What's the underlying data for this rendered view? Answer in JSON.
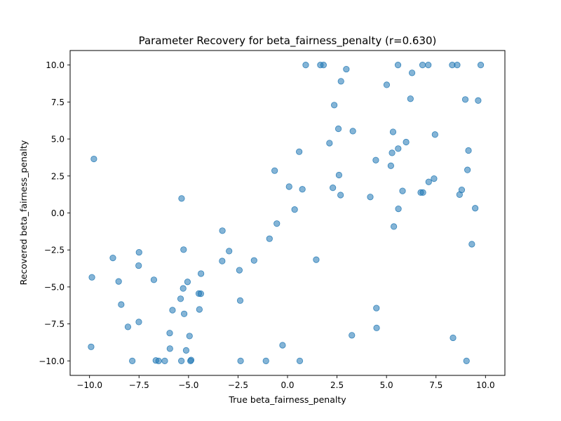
{
  "chart_data": {
    "type": "scatter",
    "title": "Parameter Recovery for beta_fairness_penalty (r=0.630)",
    "xlabel": "True beta_fairness_penalty",
    "ylabel": "Recovered beta_fairness_penalty",
    "xlim": [
      -10.98,
      10.98
    ],
    "ylim": [
      -10.98,
      10.98
    ],
    "xticks": [
      -10.0,
      -7.5,
      -5.0,
      -2.5,
      0.0,
      2.5,
      5.0,
      7.5,
      10.0
    ],
    "xtick_labels": [
      "−10.0",
      "−7.5",
      "−5.0",
      "−2.5",
      "0.0",
      "2.5",
      "5.0",
      "7.5",
      "10.0"
    ],
    "yticks": [
      -10.0,
      -7.5,
      -5.0,
      -2.5,
      0.0,
      2.5,
      5.0,
      7.5,
      10.0
    ],
    "ytick_labels": [
      "−10.0",
      "−7.5",
      "−5.0",
      "−2.5",
      "0.0",
      "2.5",
      "5.0",
      "7.5",
      "10.0"
    ],
    "grid": false,
    "marker_color": "#1f77b4",
    "marker_alpha": 0.55,
    "points": [
      [
        0.92,
        10.0
      ],
      [
        1.66,
        10.0
      ],
      [
        1.82,
        10.0
      ],
      [
        2.97,
        9.72
      ],
      [
        5.58,
        10.0
      ],
      [
        6.82,
        10.0
      ],
      [
        7.11,
        10.0
      ],
      [
        8.32,
        10.0
      ],
      [
        8.57,
        10.0
      ],
      [
        9.76,
        10.0
      ],
      [
        2.7,
        8.9
      ],
      [
        6.29,
        9.47
      ],
      [
        5.01,
        8.66
      ],
      [
        2.36,
        7.29
      ],
      [
        6.21,
        7.72
      ],
      [
        8.98,
        7.67
      ],
      [
        9.63,
        7.6
      ],
      [
        2.57,
        5.69
      ],
      [
        3.3,
        5.53
      ],
      [
        5.33,
        5.48
      ],
      [
        7.45,
        5.3
      ],
      [
        2.12,
        4.72
      ],
      [
        5.99,
        4.79
      ],
      [
        5.59,
        4.35
      ],
      [
        0.59,
        4.14
      ],
      [
        5.28,
        4.06
      ],
      [
        9.14,
        4.22
      ],
      [
        -9.78,
        3.65
      ],
      [
        4.46,
        3.57
      ],
      [
        5.22,
        3.19
      ],
      [
        -0.65,
        2.86
      ],
      [
        9.09,
        2.91
      ],
      [
        2.6,
        2.56
      ],
      [
        7.4,
        2.32
      ],
      [
        7.13,
        2.1
      ],
      [
        0.08,
        1.78
      ],
      [
        0.75,
        1.6
      ],
      [
        2.29,
        1.7
      ],
      [
        5.81,
        1.49
      ],
      [
        6.73,
        1.38
      ],
      [
        6.84,
        1.38
      ],
      [
        8.8,
        1.56
      ],
      [
        8.69,
        1.24
      ],
      [
        2.68,
        1.21
      ],
      [
        4.18,
        1.08
      ],
      [
        -5.35,
        0.98
      ],
      [
        0.36,
        0.23
      ],
      [
        5.6,
        0.28
      ],
      [
        9.48,
        0.32
      ],
      [
        -0.54,
        -0.72
      ],
      [
        5.37,
        -0.92
      ],
      [
        -3.29,
        -1.2
      ],
      [
        -0.91,
        -1.74
      ],
      [
        9.31,
        -2.11
      ],
      [
        -5.25,
        -2.48
      ],
      [
        -2.95,
        -2.58
      ],
      [
        -7.5,
        -2.66
      ],
      [
        -8.82,
        -3.04
      ],
      [
        -1.69,
        -3.21
      ],
      [
        -3.3,
        -3.25
      ],
      [
        1.45,
        -3.16
      ],
      [
        -7.52,
        -3.56
      ],
      [
        -2.43,
        -3.87
      ],
      [
        -4.37,
        -4.1
      ],
      [
        -9.88,
        -4.35
      ],
      [
        -8.53,
        -4.63
      ],
      [
        -6.75,
        -4.52
      ],
      [
        -5.05,
        -4.66
      ],
      [
        -5.27,
        -5.1
      ],
      [
        -4.48,
        -5.45
      ],
      [
        -4.38,
        -5.46
      ],
      [
        -5.4,
        -5.8
      ],
      [
        -2.39,
        -5.92
      ],
      [
        -8.4,
        -6.19
      ],
      [
        -4.45,
        -6.52
      ],
      [
        4.49,
        -6.43
      ],
      [
        -5.81,
        -6.57
      ],
      [
        -5.22,
        -6.82
      ],
      [
        -7.51,
        -7.37
      ],
      [
        -8.06,
        -7.7
      ],
      [
        4.5,
        -7.77
      ],
      [
        -5.95,
        -8.12
      ],
      [
        -4.95,
        -8.32
      ],
      [
        3.25,
        -8.27
      ],
      [
        8.36,
        -8.44
      ],
      [
        -9.92,
        -9.05
      ],
      [
        -5.94,
        -9.17
      ],
      [
        -5.12,
        -9.29
      ],
      [
        -0.25,
        -8.94
      ],
      [
        -7.84,
        -10.0
      ],
      [
        -6.65,
        -9.97
      ],
      [
        -6.51,
        -10.0
      ],
      [
        -6.2,
        -10.0
      ],
      [
        -5.36,
        -10.0
      ],
      [
        -4.87,
        -9.94
      ],
      [
        -4.9,
        -10.0
      ],
      [
        -2.37,
        -10.0
      ],
      [
        -1.09,
        -10.0
      ],
      [
        0.62,
        -10.0
      ],
      [
        9.04,
        -10.0
      ]
    ]
  }
}
